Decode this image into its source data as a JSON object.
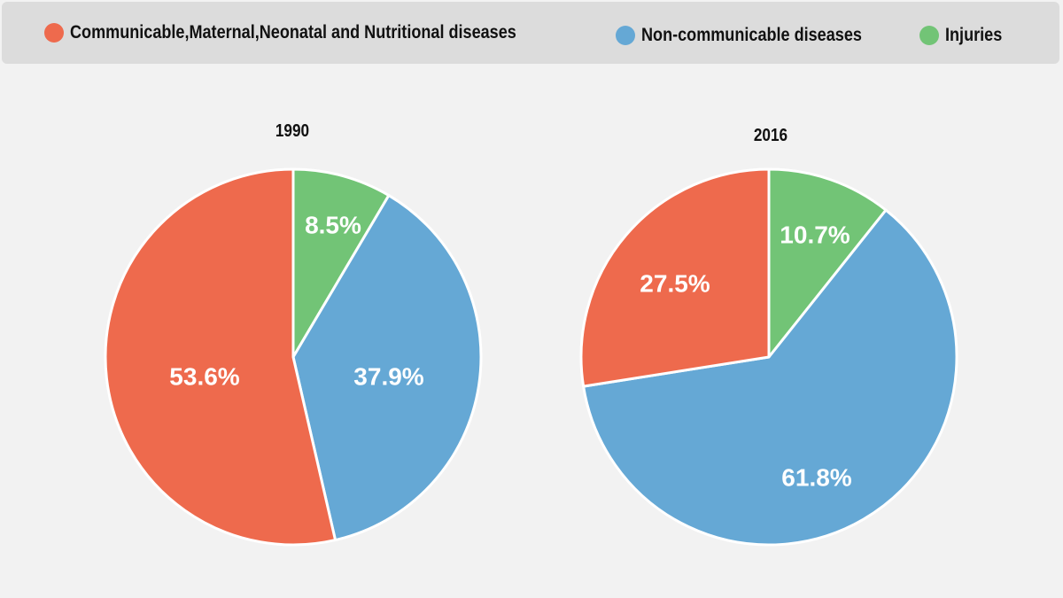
{
  "legend": [
    {
      "label": "Communicable,Maternal,Neonatal and Nutritional diseases",
      "color": "#ee6a4d"
    },
    {
      "label": "Non-communicable diseases",
      "color": "#65a8d5"
    },
    {
      "label": "Injuries",
      "color": "#72c476"
    }
  ],
  "chart_data": [
    {
      "type": "pie",
      "title": "1990",
      "labels": [
        "Communicable,Maternal,Neonatal and Nutritional diseases",
        "Non-communicable diseases",
        "Injuries"
      ],
      "values": [
        53.6,
        37.9,
        8.5
      ],
      "value_labels": [
        "53.6%",
        "37.9%",
        "8.5%"
      ],
      "colors": [
        "#ee6a4d",
        "#65a8d5",
        "#72c476"
      ],
      "legend_position": "top"
    },
    {
      "type": "pie",
      "title": "2016",
      "labels": [
        "Communicable,Maternal,Neonatal and Nutritional diseases",
        "Non-communicable diseases",
        "Injuries"
      ],
      "values": [
        27.5,
        61.8,
        10.7
      ],
      "value_labels": [
        "27.5%",
        "61.8%",
        "10.7%"
      ],
      "colors": [
        "#ee6a4d",
        "#65a8d5",
        "#72c476"
      ],
      "legend_position": "top"
    }
  ]
}
